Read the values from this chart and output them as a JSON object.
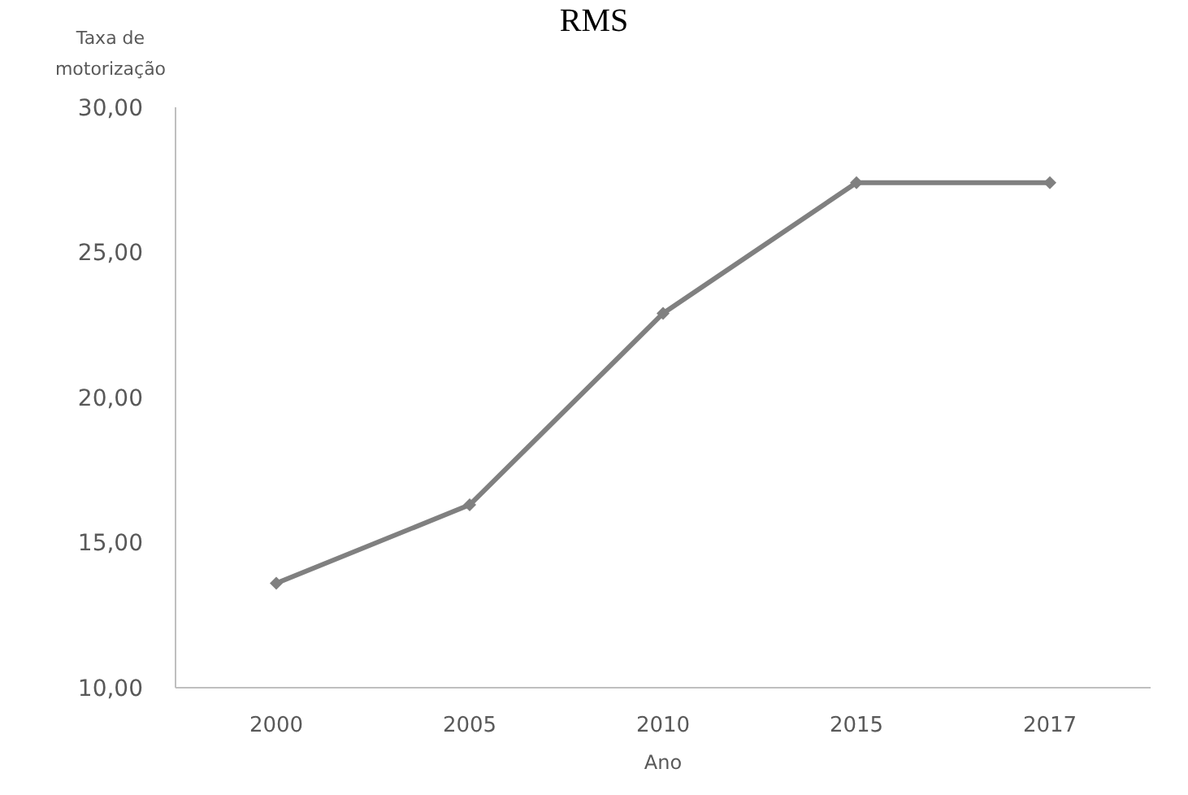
{
  "chart_data": {
    "type": "line",
    "title": "RMS",
    "xlabel": "Ano",
    "ylabel": "Taxa de motorização",
    "categories": [
      "2000",
      "2005",
      "2010",
      "2015",
      "2017"
    ],
    "series": [
      {
        "color": "#808080",
        "values": [
          13.6,
          16.3,
          22.9,
          27.4,
          27.4
        ]
      }
    ],
    "ylim": [
      10,
      30
    ],
    "yticks": [
      {
        "value": 10,
        "label": "10,00"
      },
      {
        "value": 15,
        "label": "15,00"
      },
      {
        "value": 20,
        "label": "20,00"
      },
      {
        "value": 25,
        "label": "25,00"
      },
      {
        "value": 30,
        "label": "30,00"
      }
    ],
    "grid": false,
    "legend": false,
    "marker": "diamond",
    "line_style": "solid"
  }
}
